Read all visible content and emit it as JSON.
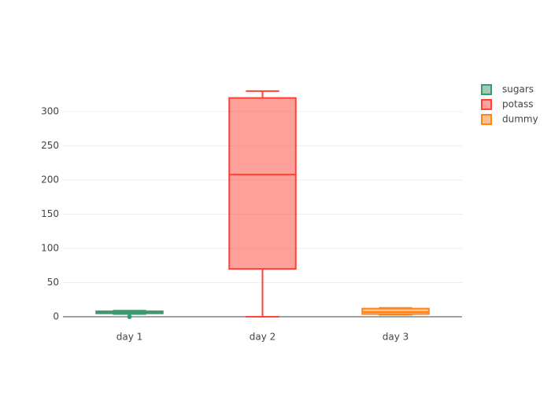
{
  "chart_data": {
    "type": "box",
    "ylim": [
      -19.5,
      348.3
    ],
    "yticks": [
      0,
      50,
      100,
      150,
      200,
      250,
      300
    ],
    "grid": true,
    "legend": "top-right",
    "series": [
      {
        "name": "sugars",
        "color": "#3d9970",
        "x": "day 1",
        "lowerfence": 4,
        "q1": 5,
        "median": 6,
        "q3": 8,
        "upperfence": 9,
        "outliers": [
          0
        ]
      },
      {
        "name": "potass",
        "color": "#ff4136",
        "x": "day 2",
        "lowerfence": 0,
        "q1": 70,
        "median": 208,
        "q3": 320,
        "upperfence": 330,
        "outliers": []
      },
      {
        "name": "dummy",
        "color": "#ff851b",
        "x": "day 3",
        "lowerfence": 3,
        "q1": 4,
        "median": 7,
        "q3": 12,
        "upperfence": 13,
        "outliers": []
      }
    ]
  }
}
